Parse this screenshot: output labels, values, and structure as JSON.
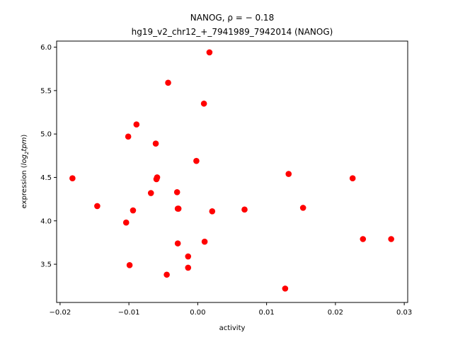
{
  "chart_data": {
    "type": "scatter",
    "title_line1": "NANOG, ρ = − 0.18",
    "title_line2": "hg19_v2_chr12_+_7941989_7942014 (NANOG)",
    "xlabel": "activity",
    "ylabel_prefix": "expression (",
    "ylabel_log": "log",
    "ylabel_sub": "2",
    "ylabel_tpm": "tpm",
    "ylabel_suffix": ")",
    "xlim": [
      -0.0205,
      0.0305
    ],
    "ylim": [
      3.06,
      6.07
    ],
    "x_ticks": [
      -0.02,
      -0.01,
      0.0,
      0.01,
      0.02,
      0.03
    ],
    "x_tick_labels": [
      "−0.02",
      "−0.01",
      "0.00",
      "0.01",
      "0.02",
      "0.03"
    ],
    "y_ticks": [
      3.5,
      4.0,
      4.5,
      5.0,
      5.5,
      6.0
    ],
    "y_tick_labels": [
      "3.5",
      "4.0",
      "4.5",
      "5.0",
      "5.5",
      "6.0"
    ],
    "point_color": "#ff0000",
    "series": [
      {
        "name": "samples",
        "x": [
          -0.0182,
          -0.0146,
          -0.0104,
          -0.0101,
          -0.0099,
          -0.0094,
          -0.0089,
          -0.0068,
          -0.0061,
          -0.006,
          -0.0059,
          -0.0045,
          -0.0043,
          -0.003,
          -0.0029,
          -0.0029,
          -0.0028,
          -0.0014,
          -0.0014,
          -0.0002,
          0.0009,
          0.001,
          0.0017,
          0.0021,
          0.0068,
          0.0127,
          0.0132,
          0.0153,
          0.0225,
          0.024,
          0.0281
        ],
        "y": [
          4.49,
          4.17,
          3.98,
          4.97,
          3.49,
          4.12,
          5.11,
          4.32,
          4.89,
          4.48,
          4.5,
          3.38,
          5.59,
          4.33,
          3.74,
          4.14,
          4.14,
          3.59,
          3.46,
          4.69,
          5.35,
          3.76,
          5.94,
          4.11,
          4.13,
          3.22,
          4.54,
          4.15,
          4.49,
          3.79,
          3.79
        ]
      }
    ]
  }
}
